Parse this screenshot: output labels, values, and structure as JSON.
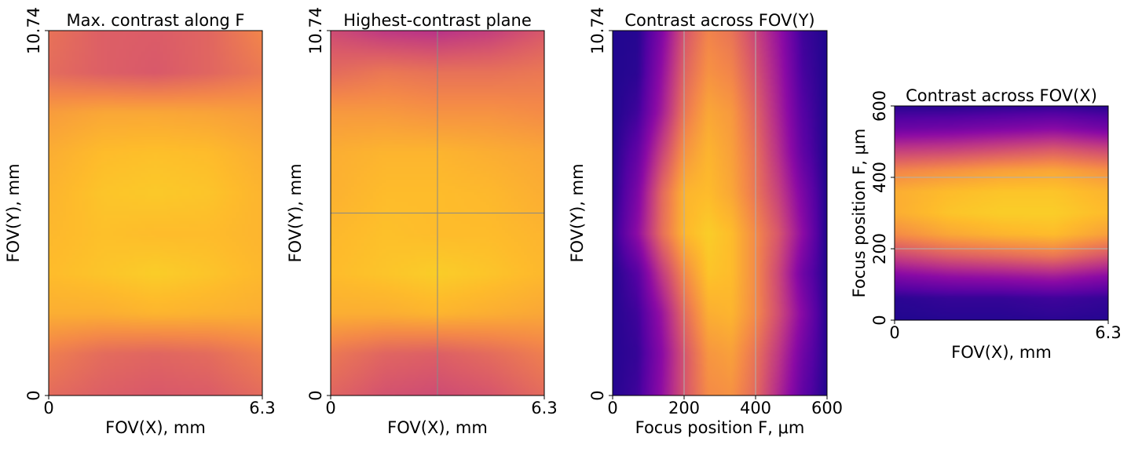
{
  "chart_data": [
    {
      "type": "heatmap",
      "title": "Max. contrast along F",
      "xlabel": "FOV(X), mm",
      "ylabel": "FOV(Y), mm",
      "xlim": [
        0,
        6.3
      ],
      "ylim": [
        0,
        10.74
      ],
      "xticks": [
        "0",
        "6.3"
      ],
      "yticks": [
        "0",
        "10.74"
      ],
      "colormap": "plasma",
      "grid": false,
      "values": [
        [
          0.62,
          0.58,
          0.56,
          0.57,
          0.62
        ],
        [
          0.68,
          0.62,
          0.6,
          0.62,
          0.68
        ],
        [
          0.82,
          0.82,
          0.84,
          0.83,
          0.82
        ],
        [
          0.86,
          0.88,
          0.9,
          0.88,
          0.85
        ],
        [
          0.85,
          0.87,
          0.86,
          0.86,
          0.84
        ],
        [
          0.84,
          0.88,
          0.89,
          0.88,
          0.84
        ],
        [
          0.82,
          0.86,
          0.87,
          0.86,
          0.82
        ],
        [
          0.77,
          0.8,
          0.8,
          0.79,
          0.77
        ],
        [
          0.62,
          0.58,
          0.56,
          0.6,
          0.66
        ],
        [
          0.64,
          0.58,
          0.57,
          0.6,
          0.7
        ]
      ]
    },
    {
      "type": "heatmap",
      "title": "Highest-contrast plane",
      "xlabel": "FOV(X), mm",
      "ylabel": "FOV(Y), mm",
      "xlim": [
        0,
        6.3
      ],
      "ylim": [
        0,
        10.74
      ],
      "xticks": [
        "0",
        "6.3"
      ],
      "yticks": [
        "0",
        "10.74"
      ],
      "colormap": "plasma",
      "grid": false,
      "crosshair": {
        "x": 3.15,
        "y": 5.37
      },
      "values": [
        [
          0.6,
          0.54,
          0.52,
          0.55,
          0.62
        ],
        [
          0.66,
          0.6,
          0.58,
          0.62,
          0.68
        ],
        [
          0.82,
          0.82,
          0.84,
          0.82,
          0.8
        ],
        [
          0.86,
          0.88,
          0.9,
          0.88,
          0.85
        ],
        [
          0.85,
          0.87,
          0.86,
          0.86,
          0.84
        ],
        [
          0.83,
          0.86,
          0.86,
          0.85,
          0.82
        ],
        [
          0.82,
          0.84,
          0.84,
          0.82,
          0.8
        ],
        [
          0.76,
          0.76,
          0.74,
          0.74,
          0.72
        ],
        [
          0.62,
          0.66,
          0.64,
          0.64,
          0.66
        ],
        [
          0.52,
          0.46,
          0.44,
          0.48,
          0.56
        ]
      ]
    },
    {
      "type": "heatmap",
      "title": "Contrast across FOV(Y)",
      "xlabel": "Focus position F, μm",
      "ylabel": "FOV(Y), mm",
      "xlim": [
        0,
        600
      ],
      "ylim": [
        0,
        10.74
      ],
      "xticks": [
        "0",
        "200",
        "400",
        "600"
      ],
      "yticks": [
        "0",
        "10.74"
      ],
      "colormap": "plasma",
      "grid": true,
      "vlines": [
        200,
        400
      ],
      "values": [
        [
          0.05,
          0.1,
          0.3,
          0.55,
          0.72,
          0.74,
          0.62,
          0.4,
          0.18,
          0.05
        ],
        [
          0.05,
          0.08,
          0.28,
          0.55,
          0.75,
          0.78,
          0.65,
          0.45,
          0.22,
          0.06
        ],
        [
          0.05,
          0.1,
          0.32,
          0.62,
          0.82,
          0.84,
          0.72,
          0.52,
          0.28,
          0.06
        ],
        [
          0.05,
          0.15,
          0.45,
          0.72,
          0.88,
          0.86,
          0.72,
          0.5,
          0.22,
          0.05
        ],
        [
          0.08,
          0.3,
          0.62,
          0.85,
          0.9,
          0.86,
          0.72,
          0.55,
          0.3,
          0.05
        ],
        [
          0.06,
          0.25,
          0.6,
          0.84,
          0.86,
          0.8,
          0.66,
          0.48,
          0.25,
          0.05
        ],
        [
          0.05,
          0.18,
          0.48,
          0.75,
          0.84,
          0.78,
          0.64,
          0.42,
          0.18,
          0.04
        ],
        [
          0.04,
          0.1,
          0.35,
          0.66,
          0.8,
          0.76,
          0.6,
          0.38,
          0.15,
          0.04
        ],
        [
          0.04,
          0.06,
          0.3,
          0.6,
          0.74,
          0.7,
          0.55,
          0.35,
          0.12,
          0.04
        ],
        [
          0.04,
          0.05,
          0.25,
          0.55,
          0.7,
          0.65,
          0.5,
          0.32,
          0.1,
          0.04
        ]
      ]
    },
    {
      "type": "heatmap",
      "title": "Contrast across FOV(X)",
      "xlabel": "FOV(X), mm",
      "ylabel": "Focus position F, μm",
      "xlim": [
        0,
        6.3
      ],
      "ylim": [
        0,
        600
      ],
      "xticks": [
        "0",
        "6.3"
      ],
      "yticks": [
        "0",
        "200",
        "400",
        "600"
      ],
      "colormap": "plasma",
      "grid": true,
      "hlines": [
        200,
        400
      ],
      "values": [
        [
          0.04,
          0.05,
          0.05,
          0.06,
          0.05
        ],
        [
          0.06,
          0.08,
          0.08,
          0.1,
          0.08
        ],
        [
          0.25,
          0.3,
          0.32,
          0.35,
          0.28
        ],
        [
          0.5,
          0.58,
          0.62,
          0.66,
          0.55
        ],
        [
          0.72,
          0.8,
          0.84,
          0.86,
          0.78
        ],
        [
          0.82,
          0.88,
          0.9,
          0.9,
          0.86
        ],
        [
          0.82,
          0.86,
          0.88,
          0.88,
          0.84
        ],
        [
          0.7,
          0.74,
          0.78,
          0.8,
          0.74
        ],
        [
          0.46,
          0.48,
          0.52,
          0.56,
          0.5
        ],
        [
          0.2,
          0.22,
          0.25,
          0.28,
          0.22
        ],
        [
          0.06,
          0.06,
          0.07,
          0.08,
          0.06
        ]
      ]
    }
  ]
}
